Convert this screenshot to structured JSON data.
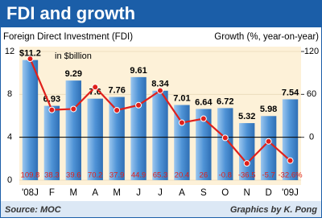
{
  "chart_data": {
    "type": "bar_line",
    "title": "FDI and growth",
    "y_label": "Foreign Direct Investment (FDI)",
    "y2_label": "Growth (%, year-on-year)",
    "annotation": "in $billion",
    "source": "Source: MOC",
    "credit": "Graphics by K. Pong",
    "categories": [
      "'08J",
      "F",
      "M",
      "A",
      "M",
      "J",
      "J",
      "A",
      "S",
      "O",
      "N",
      "D",
      "'09J"
    ],
    "series": [
      {
        "name": "FDI",
        "color": "#4f93d6",
        "values": [
          11.2,
          6.93,
          9.29,
          7.6,
          7.76,
          9.61,
          8.34,
          7.01,
          6.64,
          6.72,
          5.32,
          5.98,
          7.54
        ],
        "value_labels": [
          "$11.2",
          "6.93",
          "9.29",
          "7.6",
          "7.76",
          "9.61",
          "8.34",
          "7.01",
          "6.64",
          "6.72",
          "5.32",
          "5.98",
          "7.54"
        ]
      },
      {
        "name": "Growth",
        "color": "#e0201b",
        "axis": "y2",
        "values": [
          109.8,
          38.3,
          39.6,
          70.2,
          37.9,
          44.9,
          65.3,
          20.4,
          26,
          -0.8,
          -36.5,
          -5.7,
          -32.6
        ],
        "value_labels": [
          "109.8",
          "38.3",
          "39.6",
          "70.2",
          "37.9",
          "44.9",
          "65.3",
          "20.4",
          "26",
          "-0.8",
          "-36.5",
          "-5.7",
          "-32.6%"
        ]
      }
    ],
    "ylim": [
      0,
      12
    ],
    "yticks": [
      0,
      4,
      8,
      12
    ],
    "y2lim": [
      -60,
      120
    ],
    "y2ticks": [
      0,
      60,
      120
    ]
  }
}
